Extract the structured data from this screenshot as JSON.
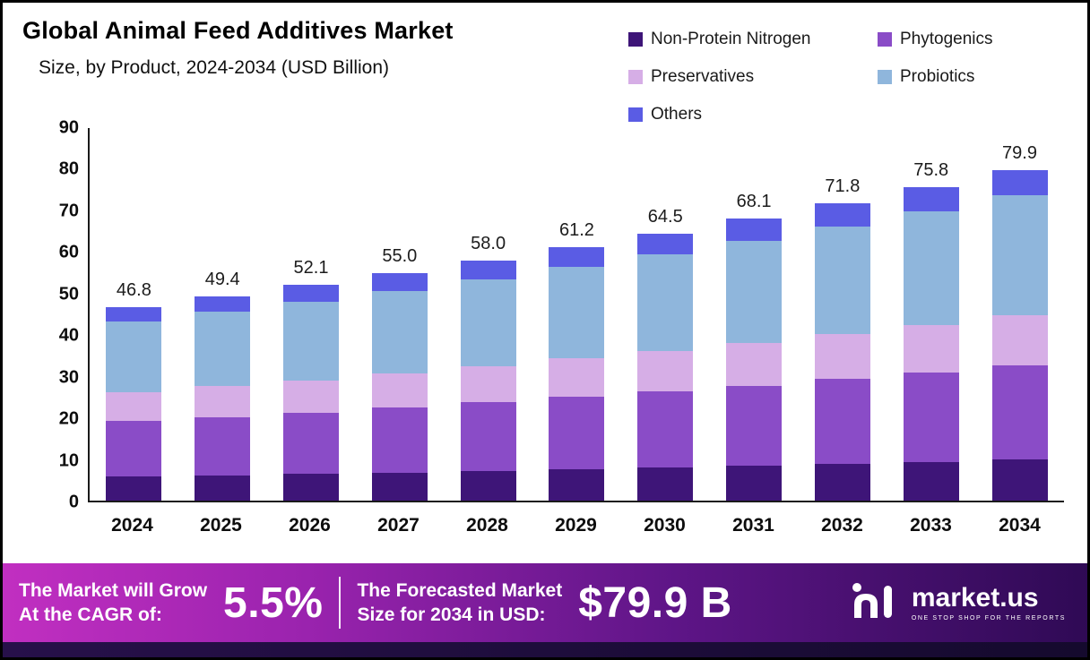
{
  "header": {
    "title": "Global Animal Feed Additives Market",
    "subtitle": "Size, by Product, 2024-2034 (USD Billion)"
  },
  "chart_data": {
    "type": "bar",
    "stacked": true,
    "title": "Global Animal Feed Additives Market Size, by Product, 2024-2034 (USD Billion)",
    "xlabel": "",
    "ylabel": "",
    "ylim": [
      0,
      90
    ],
    "y_tick_step": 10,
    "grid": false,
    "legend_position": "top-right",
    "categories": [
      "2024",
      "2025",
      "2026",
      "2027",
      "2028",
      "2029",
      "2030",
      "2031",
      "2032",
      "2033",
      "2034"
    ],
    "totals": [
      46.8,
      49.4,
      52.1,
      55.0,
      58.0,
      61.2,
      64.5,
      68.1,
      71.8,
      75.8,
      79.9
    ],
    "series": [
      {
        "name": "Non-Protein Nitrogen",
        "color": "#3e1578",
        "values": [
          5.8,
          6.1,
          6.4,
          6.8,
          7.2,
          7.6,
          8.0,
          8.4,
          8.9,
          9.4,
          9.9
        ]
      },
      {
        "name": "Phytogenics",
        "color": "#8a4cc7",
        "values": [
          13.4,
          14.1,
          14.9,
          15.7,
          16.6,
          17.5,
          18.4,
          19.4,
          20.5,
          21.6,
          22.8
        ]
      },
      {
        "name": "Preservatives",
        "color": "#d6aee6",
        "values": [
          7.0,
          7.4,
          7.8,
          8.2,
          8.7,
          9.2,
          9.7,
          10.2,
          10.8,
          11.4,
          12.0
        ]
      },
      {
        "name": "Probiotics",
        "color": "#8fb6dc",
        "values": [
          17.0,
          18.0,
          19.0,
          20.0,
          21.0,
          22.2,
          23.4,
          24.8,
          26.0,
          27.5,
          29.0
        ]
      },
      {
        "name": "Others",
        "color": "#5a5ce4",
        "values": [
          3.6,
          3.8,
          4.0,
          4.3,
          4.5,
          4.7,
          5.0,
          5.3,
          5.6,
          5.9,
          6.2
        ]
      }
    ]
  },
  "footer": {
    "cagr_label_line1": "The Market will Grow",
    "cagr_label_line2": "At the CAGR of:",
    "cagr_value": "5.5%",
    "forecast_label_line1": "The Forecasted Market",
    "forecast_label_line2": "Size for 2034 in USD:",
    "forecast_value": "$79.9 B",
    "brand_name": "market.us",
    "brand_tagline": "ONE STOP SHOP FOR THE REPORTS"
  }
}
